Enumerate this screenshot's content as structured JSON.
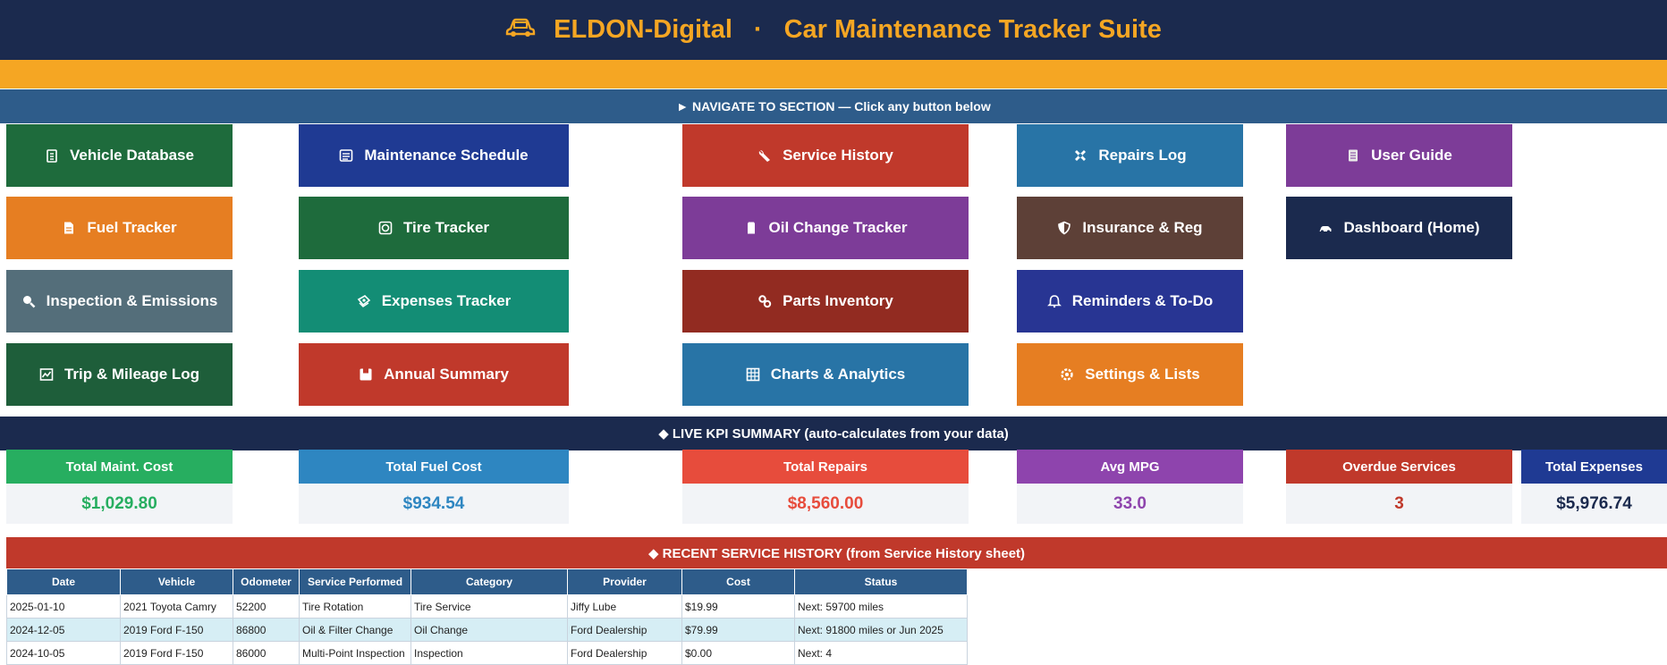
{
  "header": {
    "brand": "ELDON-Digital",
    "separator": "·",
    "title": "Car Maintenance Tracker Suite",
    "icon": "car-icon"
  },
  "nav_banner": "► NAVIGATE TO SECTION — Click any button below",
  "nav_buttons": [
    {
      "label": "Vehicle Database",
      "icon": "clipboard-icon",
      "color": "#1e6b3c"
    },
    {
      "label": "Maintenance Schedule",
      "icon": "calendar-list-icon",
      "color": "#1f3a93"
    },
    {
      "label": "Service History",
      "icon": "wrench-icon",
      "color": "#c0392b"
    },
    {
      "label": "Repairs Log",
      "icon": "tools-icon",
      "color": "#2874a6"
    },
    {
      "label": "User Guide",
      "icon": "document-icon",
      "color": "#7d3c98"
    },
    {
      "label": "Fuel Tracker",
      "icon": "file-icon",
      "color": "#e67e22"
    },
    {
      "label": "Tire Tracker",
      "icon": "tire-icon",
      "color": "#1e6b3c"
    },
    {
      "label": "Oil Change Tracker",
      "icon": "oil-can-icon",
      "color": "#7d3c98"
    },
    {
      "label": "Insurance & Reg",
      "icon": "shield-icon",
      "color": "#5d4037"
    },
    {
      "label": "Dashboard (Home)",
      "icon": "car-icon",
      "color": "#1b2a4e"
    },
    {
      "label": "Inspection & Emissions",
      "icon": "magnifier-icon",
      "color": "#546e7a"
    },
    {
      "label": "Expenses Tracker",
      "icon": "money-icon",
      "color": "#138d75"
    },
    {
      "label": "Parts Inventory",
      "icon": "gears-icon",
      "color": "#922b21"
    },
    {
      "label": "Reminders & To-Do",
      "icon": "bell-icon",
      "color": "#283593"
    },
    {
      "label": "Trip & Mileage Log",
      "icon": "chart-line-icon",
      "color": "#1e5e3a"
    },
    {
      "label": "Annual Summary",
      "icon": "box-icon",
      "color": "#c0392b"
    },
    {
      "label": "Charts & Analytics",
      "icon": "grid-chart-icon",
      "color": "#2874a6"
    },
    {
      "label": "Settings & Lists",
      "icon": "gear-icon",
      "color": "#e67e22"
    }
  ],
  "kpi_banner": "◆ LIVE KPI SUMMARY  (auto-calculates from your data)",
  "kpis": [
    {
      "label": "Total Maint. Cost",
      "value": "$1,029.80",
      "head_color": "#27ae60",
      "value_color": "#27ae60"
    },
    {
      "label": "Total Fuel Cost",
      "value": "$934.54",
      "head_color": "#2e86c1",
      "value_color": "#2e86c1"
    },
    {
      "label": "Total Repairs",
      "value": "$8,560.00",
      "head_color": "#e74c3c",
      "value_color": "#e74c3c"
    },
    {
      "label": "Avg MPG",
      "value": "33.0",
      "head_color": "#8e44ad",
      "value_color": "#8e44ad"
    },
    {
      "label": "Overdue Services",
      "value": "3",
      "head_color": "#c0392b",
      "value_color": "#c0392b"
    },
    {
      "label": "Total Expenses",
      "value": "$5,976.74",
      "head_color": "#1f3a93",
      "value_color": "#1b2a4e"
    }
  ],
  "service_banner": "◆ RECENT SERVICE HISTORY  (from Service History sheet)",
  "service_table": {
    "columns": [
      "Date",
      "Vehicle",
      "Odometer",
      "Service Performed",
      "Category",
      "Provider",
      "Cost",
      "Status"
    ],
    "rows": [
      [
        "2025-01-10",
        "2021 Toyota Camry",
        "52200",
        "Tire Rotation",
        "Tire Service",
        "Jiffy Lube",
        "$19.99",
        "Next: 59700 miles"
      ],
      [
        "2024-12-05",
        "2019 Ford F-150",
        "86800",
        "Oil & Filter Change",
        "Oil Change",
        "Ford Dealership",
        "$79.99",
        "Next: 91800 miles or Jun 2025"
      ],
      [
        "2024-10-05",
        "2019 Ford F-150",
        "86000",
        "Multi-Point Inspection",
        "Inspection",
        "Ford Dealership",
        "$0.00",
        "Next: 4"
      ]
    ]
  }
}
